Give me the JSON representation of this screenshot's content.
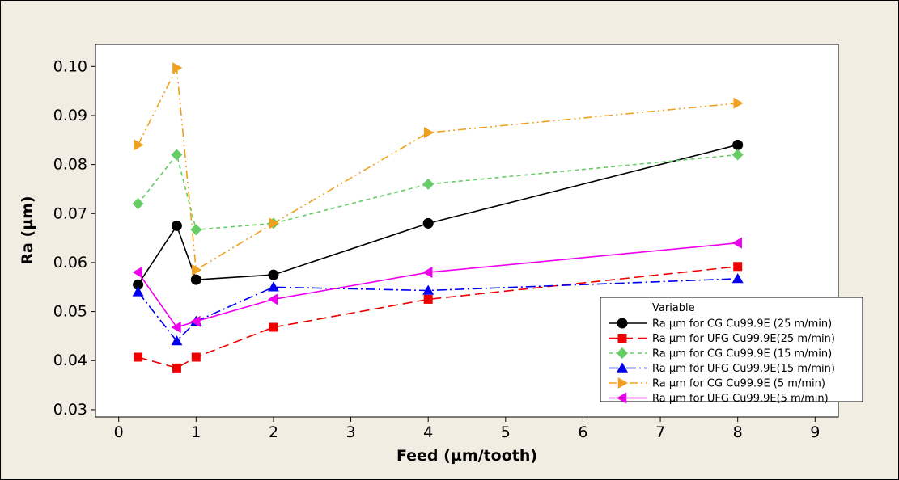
{
  "chart_data": {
    "type": "line",
    "title": "",
    "xlabel": "Feed (µm/tooth)",
    "ylabel": "Ra (µm)",
    "xlim": [
      -0.3,
      9.3
    ],
    "ylim": [
      0.0285,
      0.1045
    ],
    "xticks": [
      0,
      1,
      2,
      3,
      4,
      5,
      6,
      7,
      8,
      9
    ],
    "yticks": [
      0.03,
      0.04,
      0.05,
      0.06,
      0.07,
      0.08,
      0.09,
      0.1
    ],
    "xtick_labels": [
      "0",
      "1",
      "2",
      "3",
      "4",
      "5",
      "6",
      "7",
      "8",
      "9"
    ],
    "ytick_labels": [
      "0.03",
      "0.04",
      "0.05",
      "0.06",
      "0.07",
      "0.08",
      "0.09",
      "0.10"
    ],
    "grid": false,
    "legend_title": "Variable",
    "legend_position": "bottom-right",
    "x": [
      0.25,
      0.75,
      1,
      2,
      4,
      8
    ],
    "series": [
      {
        "name": "Ra µm for CG Cu99.9E (25 m/min)",
        "values": [
          0.0555,
          0.0675,
          0.0565,
          0.0575,
          0.068,
          0.084
        ],
        "color": "#000000",
        "marker": "circle",
        "dash": ""
      },
      {
        "name": "Ra µm for UFG Cu99.9E(25 m/min)",
        "values": [
          0.0407,
          0.0385,
          0.0407,
          0.0468,
          0.0525,
          0.0592
        ],
        "color": "#ee0000",
        "marker": "square",
        "dash": "12,6"
      },
      {
        "name": "Ra µm for CG Cu99.9E (15 m/min)",
        "values": [
          0.072,
          0.082,
          0.0667,
          0.068,
          0.076,
          0.082
        ],
        "color": "#66cc66",
        "marker": "diamond",
        "dash": "5,4"
      },
      {
        "name": "Ra µm for UFG Cu99.9E(15 m/min)",
        "values": [
          0.054,
          0.044,
          0.048,
          0.055,
          0.0543,
          0.0567
        ],
        "color": "#0000ee",
        "marker": "triangle-up",
        "dash": "12,4,2,4"
      },
      {
        "name": "Ra µm for CG Cu99.9E (5 m/min)",
        "values": [
          0.084,
          0.0997,
          0.0585,
          0.068,
          0.0865,
          0.0925
        ],
        "color": "#f0a01e",
        "marker": "triangle-right",
        "dash": "10,4,2,4,2,4"
      },
      {
        "name": "Ra µm for UFG Cu99.9E(5 m/min)",
        "values": [
          0.058,
          0.0468,
          0.048,
          0.0525,
          0.058,
          0.064
        ],
        "color": "#ee00ee",
        "marker": "triangle-left",
        "dash": ""
      }
    ]
  }
}
